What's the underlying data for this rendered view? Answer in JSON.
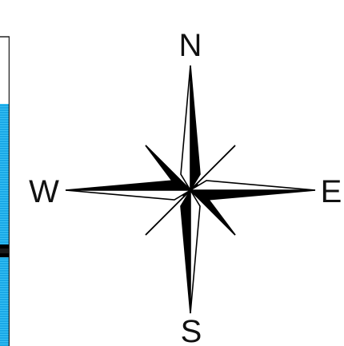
{
  "compass": {
    "north_label": "N",
    "east_label": "E",
    "south_label": "S",
    "west_label": "W"
  },
  "colors": {
    "ink": "#000000",
    "paper": "#ffffff",
    "water": "#1aa8e6",
    "water_light": "#38c0f4",
    "frame": "#222222"
  },
  "map_fragment": {
    "features": [
      "water-area",
      "road-line"
    ]
  }
}
